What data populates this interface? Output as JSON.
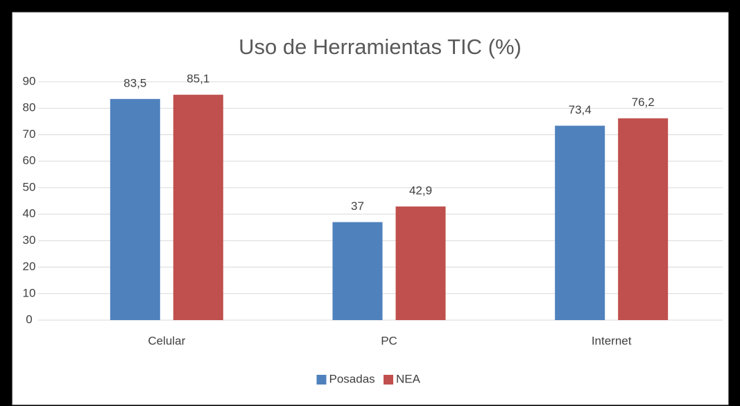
{
  "chart_data": {
    "type": "bar",
    "title": "Uso de Herramientas TIC (%)",
    "categories": [
      "Celular",
      "PC",
      "Internet"
    ],
    "series": [
      {
        "name": "Posadas",
        "color": "#4f81bd",
        "values": [
          83.5,
          37,
          73.4
        ],
        "value_labels": [
          "83,5",
          "37",
          "73,4"
        ]
      },
      {
        "name": "NEA",
        "color": "#c0504d",
        "values": [
          85.1,
          42.9,
          76.2
        ],
        "value_labels": [
          "85,1",
          "42,9",
          "76,2"
        ]
      }
    ],
    "ylim": [
      0,
      90
    ],
    "yticks": [
      0,
      10,
      20,
      30,
      40,
      50,
      60,
      70,
      80,
      90
    ],
    "grid": true,
    "legend": "bottom"
  }
}
